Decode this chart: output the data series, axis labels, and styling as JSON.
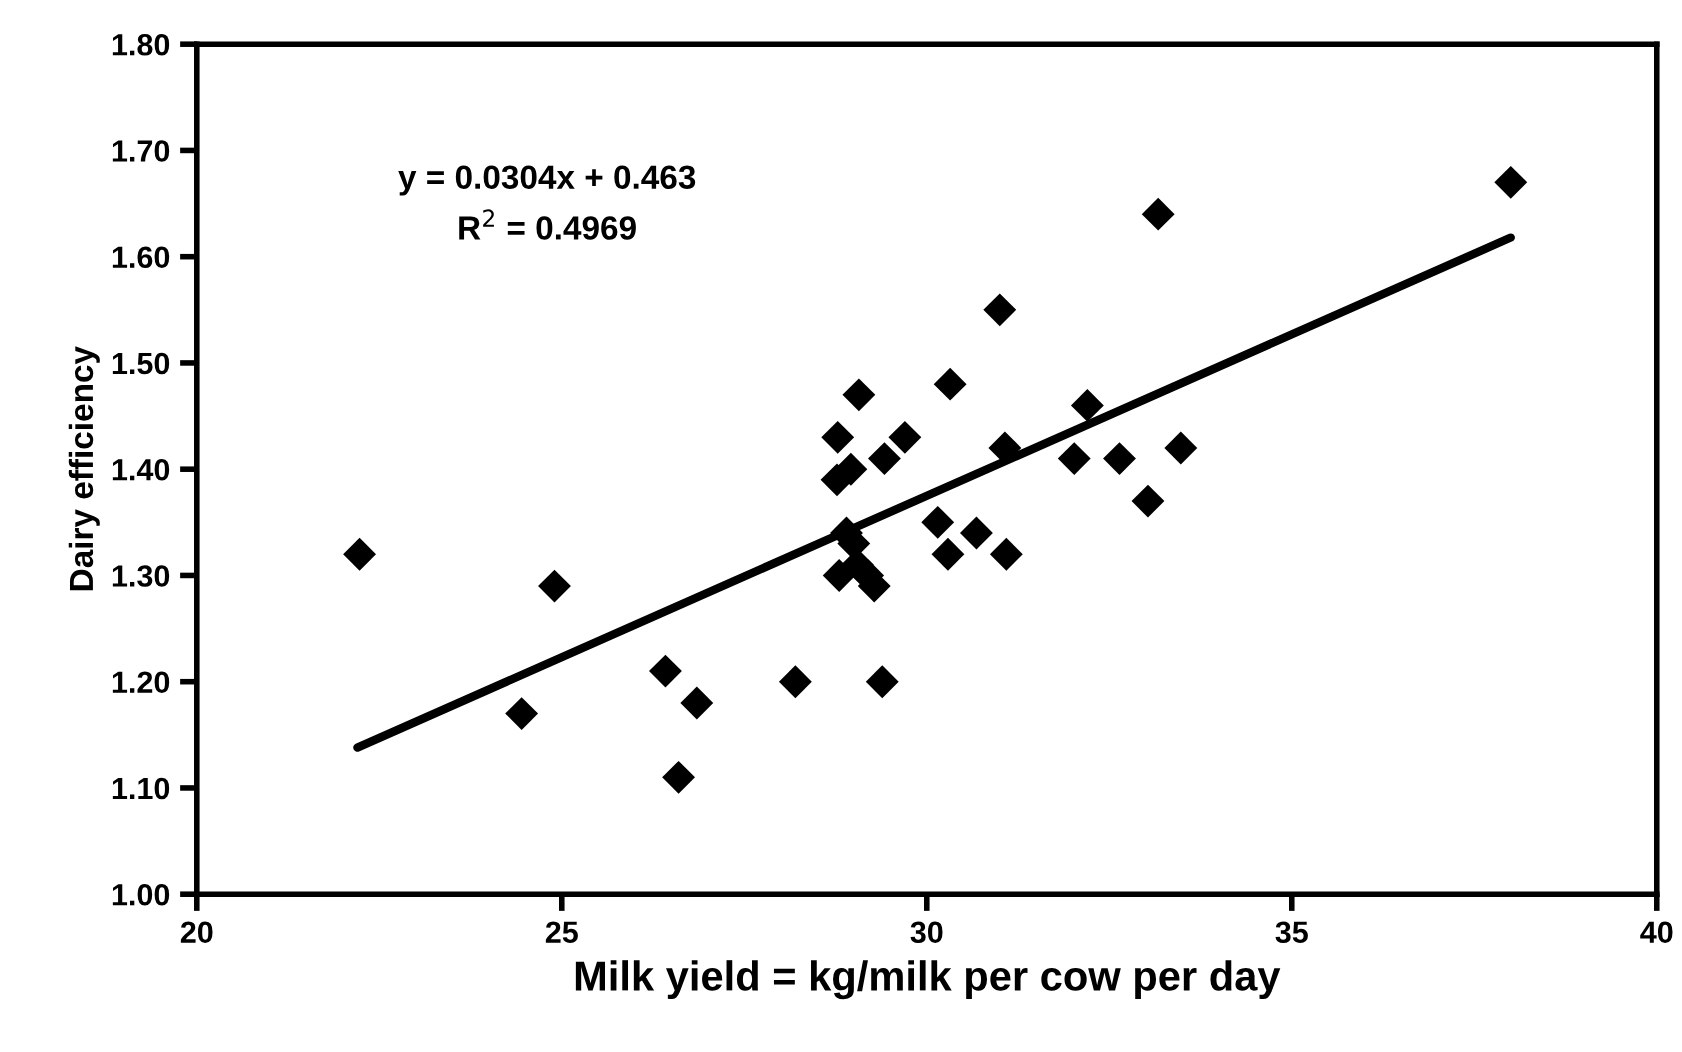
{
  "chart_data": {
    "type": "scatter",
    "xlabel": "Milk yield = kg/milk per cow per day",
    "ylabel": "Dairy efficiency",
    "annotations": [
      "y = 0.0304x + 0.463",
      "R$^{2}$ = 0.4969"
    ],
    "xlim": [
      20,
      40
    ],
    "xticks": [
      20,
      25,
      30,
      35,
      40
    ],
    "ylim": [
      1.0,
      1.8
    ],
    "yticks": [
      {
        "value": 1.0,
        "label": "1.00"
      },
      {
        "value": 1.1,
        "label": "1.10"
      },
      {
        "value": 1.2,
        "label": "1.20"
      },
      {
        "value": 1.3,
        "label": "1.30"
      },
      {
        "value": 1.4,
        "label": "1.40"
      },
      {
        "value": 1.5,
        "label": "1.50"
      },
      {
        "value": 1.6,
        "label": "1.60"
      },
      {
        "value": 1.7,
        "label": "1.70"
      },
      {
        "value": 1.8,
        "label": "1.80"
      }
    ],
    "grid": false,
    "marker": "diamond",
    "series": [
      {
        "color": "#000000",
        "x": [
          22.23,
          24.45,
          24.9,
          26.42,
          26.85,
          26.6,
          28.2,
          29.39,
          29.07,
          28.78,
          28.77,
          28.96,
          29.42,
          29.7,
          28.9,
          28.8,
          29.05,
          29.19,
          29.28,
          29.0,
          30.32,
          31.0,
          33.17,
          38.0,
          32.2,
          31.07,
          30.15,
          30.68,
          30.29,
          31.09,
          32.02,
          32.64,
          33.03,
          33.48
        ],
        "values": [
          1.32,
          1.17,
          1.29,
          1.21,
          1.18,
          1.11,
          1.2,
          1.2,
          1.47,
          1.43,
          1.39,
          1.4,
          1.41,
          1.43,
          1.34,
          1.3,
          1.31,
          1.3,
          1.29,
          1.33,
          1.48,
          1.55,
          1.64,
          1.67,
          1.46,
          1.42,
          1.35,
          1.34,
          1.32,
          1.32,
          1.41,
          1.41,
          1.37,
          1.42
        ]
      },
      {
        "type": "line",
        "color": "#000000",
        "marker": "none",
        "x": [
          22.2,
          38.0
        ],
        "values": [
          1.138,
          1.618
        ]
      }
    ]
  }
}
